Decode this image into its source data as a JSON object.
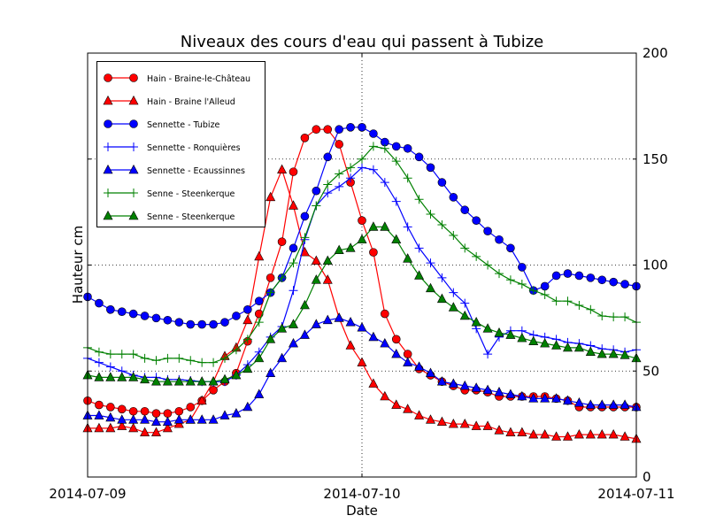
{
  "chart_data": {
    "type": "line",
    "title": "Niveaux des cours d'eau qui passent à Tubize",
    "xlabel": "Date",
    "ylabel": "Hauteur cm",
    "x_range": [
      "2014-07-09 00:00",
      "2014-07-11 00:00"
    ],
    "x_step": "1 hour",
    "x_ticks": [
      "2014-07-09",
      "2014-07-10",
      "2014-07-11"
    ],
    "ylim": [
      0,
      200
    ],
    "y_ticks": [
      "0",
      "50",
      "100",
      "150",
      "200"
    ],
    "y_axis_side": "right",
    "grid": true,
    "grid_style": "dotted",
    "legend_position": "top-left",
    "series": [
      {
        "name": "Hain - Braine-le-Château",
        "color": "#ff0000",
        "marker": "circle",
        "values": [
          36,
          34,
          33,
          32,
          31,
          31,
          30,
          30,
          31,
          33,
          36,
          41,
          45,
          49,
          64,
          77,
          94,
          111,
          144,
          160,
          164,
          164,
          157,
          139,
          121,
          106,
          77,
          65,
          58,
          51,
          48,
          45,
          43,
          41,
          41,
          40,
          38,
          38,
          38,
          38,
          38,
          37,
          36,
          33,
          33,
          33,
          33,
          33,
          33
        ]
      },
      {
        "name": "Hain - Braine l'Alleud",
        "color": "#ff0000",
        "marker": "triangle",
        "values": [
          23,
          23,
          23,
          24,
          23,
          21,
          21,
          23,
          25,
          27,
          36,
          45,
          57,
          61,
          74,
          104,
          132,
          145,
          128,
          106,
          102,
          93,
          75,
          62,
          54,
          44,
          38,
          34,
          32,
          29,
          27,
          26,
          25,
          25,
          24,
          24,
          22,
          21,
          21,
          20,
          20,
          19,
          19,
          20,
          20,
          20,
          20,
          19,
          18
        ]
      },
      {
        "name": "Sennette - Tubize",
        "color": "#0000ff",
        "marker": "circle",
        "values": [
          85,
          82,
          79,
          78,
          77,
          76,
          75,
          74,
          73,
          72,
          72,
          72,
          73,
          76,
          79,
          83,
          87,
          94,
          108,
          123,
          135,
          151,
          164,
          165,
          165,
          162,
          158,
          156,
          155,
          151,
          146,
          139,
          132,
          126,
          121,
          116,
          112,
          108,
          99,
          88,
          90,
          95,
          96,
          95,
          94,
          93,
          92,
          91,
          90
        ]
      },
      {
        "name": "Sennette - Ronquières",
        "color": "#0000ff",
        "marker": "plus",
        "values": [
          56,
          54,
          52,
          50,
          48,
          47,
          47,
          46,
          46,
          45.5,
          45,
          45,
          45,
          48,
          53,
          59,
          66,
          71,
          88,
          112,
          128,
          134,
          137,
          141,
          146,
          145,
          139,
          130,
          118,
          108,
          101,
          94,
          87,
          82,
          70,
          58,
          66,
          69,
          69,
          67,
          66,
          65,
          63.5,
          63,
          62,
          60.5,
          60,
          59,
          60
        ]
      },
      {
        "name": "Sennette - Ecaussinnes",
        "color": "#0000ff",
        "marker": "triangle",
        "values": [
          29,
          29,
          28,
          27,
          27,
          27,
          26,
          26,
          27,
          27,
          27,
          27,
          29,
          30,
          33,
          39,
          49,
          56,
          63,
          67,
          72,
          74,
          75,
          73,
          70.5,
          66,
          63,
          58,
          54,
          52,
          49,
          45,
          44,
          43,
          42,
          41,
          40,
          39,
          38,
          37,
          37,
          37,
          36,
          35,
          34,
          34,
          34,
          34,
          33
        ]
      },
      {
        "name": "Senne - Steenkerque",
        "color": "#008000",
        "marker": "plus",
        "values": [
          61,
          59,
          58,
          58,
          58,
          56,
          55,
          56,
          56,
          55,
          54,
          54,
          56,
          60,
          65,
          73,
          87,
          94,
          101,
          113,
          128,
          138,
          143,
          146,
          150,
          156,
          155,
          149,
          141,
          131,
          124,
          119,
          114,
          108,
          104,
          100,
          96,
          93,
          91,
          88,
          86,
          83,
          83,
          81,
          79,
          76,
          75.5,
          75.5,
          73
        ]
      },
      {
        "name": "Senne - Steenkerque",
        "color": "#008000",
        "marker": "triangle",
        "values": [
          48,
          47,
          47,
          47,
          47,
          46,
          45,
          45,
          45,
          45,
          45,
          45,
          46,
          48,
          51,
          56,
          65,
          70,
          72,
          81,
          93,
          102,
          107,
          108,
          112,
          118,
          118,
          112,
          103,
          95,
          89,
          84,
          80,
          76,
          73,
          70,
          68,
          67,
          65.5,
          64,
          63,
          62,
          61,
          61,
          59,
          58,
          58,
          57.5,
          56
        ]
      }
    ]
  }
}
